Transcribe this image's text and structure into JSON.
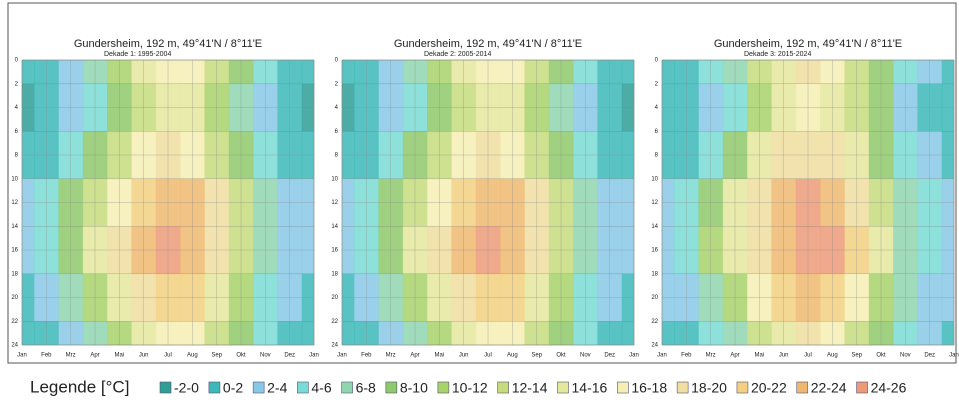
{
  "chart_data": [
    {
      "type": "heatmap",
      "title": "Gundersheim,  192 m, 49°41'N / 8°11'E",
      "subtitle": "Dekade 1: 1995-2004",
      "categories": [
        "Jan",
        "Feb",
        "Mrz",
        "Apr",
        "Mai",
        "Jun",
        "Jul",
        "Aug",
        "Sep",
        "Okt",
        "Nov",
        "Dez",
        "Jan"
      ],
      "y": [
        0,
        4,
        8,
        12,
        16,
        20,
        24
      ],
      "values": [
        [
          0,
          1,
          3,
          6,
          11,
          14,
          17,
          16,
          12,
          8,
          4,
          1,
          0
        ],
        [
          -1,
          0,
          2,
          5,
          9,
          13,
          15,
          15,
          11,
          7,
          3,
          0,
          -1
        ],
        [
          0,
          1,
          4,
          8,
          13,
          17,
          18,
          17,
          13,
          8,
          4,
          1,
          0
        ],
        [
          2,
          4,
          8,
          13,
          17,
          21,
          23,
          22,
          18,
          12,
          6,
          3,
          2
        ],
        [
          2,
          4,
          9,
          14,
          18,
          22,
          24.5,
          23.5,
          19,
          13,
          6,
          3,
          2
        ],
        [
          1,
          2,
          6,
          10,
          15,
          19,
          21,
          20,
          15,
          10,
          5,
          2,
          1
        ],
        [
          0,
          1,
          3,
          6,
          11,
          14,
          17,
          16,
          12,
          8,
          4,
          1,
          0
        ]
      ],
      "ylim": [
        0,
        24
      ],
      "yticks": [
        0,
        2,
        4,
        6,
        8,
        10,
        12,
        14,
        16,
        18,
        20,
        22,
        24
      ],
      "grid": true
    },
    {
      "type": "heatmap",
      "title": "Gundersheim,  192 m, 49°41'N / 8°11'E",
      "subtitle": "Dekade 2: 2005-2014",
      "categories": [
        "Jan",
        "Feb",
        "Mrz",
        "Apr",
        "Mai",
        "Jun",
        "Jul",
        "Aug",
        "Sep",
        "Okt",
        "Nov",
        "Dez",
        "Jan"
      ],
      "y": [
        0,
        4,
        8,
        12,
        16,
        20,
        24
      ],
      "values": [
        [
          0.5,
          1,
          3.5,
          7,
          11,
          15,
          17,
          16.5,
          12.5,
          8.5,
          4.5,
          1.5,
          0.5
        ],
        [
          -0.5,
          0,
          2.5,
          5.5,
          9.5,
          13.5,
          15.5,
          15,
          11.5,
          7.5,
          3.5,
          0.5,
          -0.5
        ],
        [
          0.5,
          1,
          4.5,
          8.5,
          13.5,
          17,
          18.5,
          17.5,
          13.5,
          8.5,
          4.5,
          1.5,
          0.5
        ],
        [
          2.5,
          4,
          9,
          13.5,
          17.5,
          21.5,
          23.5,
          22.5,
          18.5,
          12.5,
          6.5,
          3.5,
          2.5
        ],
        [
          2.5,
          4,
          9.5,
          14.5,
          18.5,
          22,
          24.5,
          23.5,
          19.5,
          13.5,
          6.5,
          3.5,
          2.5
        ],
        [
          1.5,
          2,
          6.5,
          10.5,
          15.5,
          19.5,
          21,
          20.5,
          15.5,
          10.5,
          5.5,
          2.5,
          1.5
        ],
        [
          0.5,
          1,
          3.5,
          7,
          11,
          15,
          17,
          16.5,
          12.5,
          8.5,
          4.5,
          1.5,
          0.5
        ]
      ],
      "ylim": [
        0,
        24
      ],
      "yticks": [
        0,
        2,
        4,
        6,
        8,
        10,
        12,
        14,
        16,
        18,
        20,
        22,
        24
      ],
      "grid": true
    },
    {
      "type": "heatmap",
      "title": "Gundersheim,  192 m, 49°41'N / 8°11'E",
      "subtitle": "Dekade 3: 2015-2024",
      "categories": [
        "Jan",
        "Feb",
        "Mrz",
        "Apr",
        "Mai",
        "Jun",
        "Jul",
        "Aug",
        "Sep",
        "Okt",
        "Nov",
        "Dez",
        "Jan"
      ],
      "y": [
        0,
        4,
        8,
        12,
        16,
        20,
        24
      ],
      "values": [
        [
          1,
          1.5,
          4,
          7,
          12,
          15,
          18,
          17,
          13,
          9,
          4.5,
          2,
          1
        ],
        [
          0,
          0.5,
          3,
          5.5,
          10,
          14,
          16,
          15.5,
          12,
          8,
          3.5,
          1,
          0
        ],
        [
          1,
          1.5,
          5,
          9,
          14,
          18,
          19,
          18,
          14,
          9,
          4.5,
          2,
          1
        ],
        [
          3,
          4.5,
          9.5,
          14,
          18,
          22,
          24,
          23,
          19,
          13,
          7,
          4,
          3
        ],
        [
          3,
          5,
          10,
          15,
          19,
          23,
          25,
          24.5,
          20,
          14,
          7,
          4,
          3
        ],
        [
          2,
          2.5,
          7,
          11,
          16,
          20,
          22,
          21,
          16,
          11,
          6,
          3,
          2
        ],
        [
          1,
          1.5,
          4,
          7,
          12,
          15,
          18,
          17,
          13,
          9,
          4.5,
          2,
          1
        ]
      ],
      "ylim": [
        0,
        24
      ],
      "yticks": [
        0,
        2,
        4,
        6,
        8,
        10,
        12,
        14,
        16,
        18,
        20,
        22,
        24
      ],
      "grid": true
    }
  ],
  "legend": {
    "title": "Legende [°C]",
    "labels": [
      "-2-0",
      "0-2",
      "2-4",
      "4-6",
      "6-8",
      "8-10",
      "10-12",
      "12-14",
      "14-16",
      "16-18",
      "18-20",
      "20-22",
      "22-24",
      "24-26"
    ],
    "levels": [
      -2,
      0,
      2,
      4,
      6,
      8,
      10,
      12,
      14,
      16,
      18,
      20,
      22,
      24,
      26
    ],
    "colors": [
      "#2e9e96",
      "#3cb8b8",
      "#88c8e6",
      "#79dcd4",
      "#8fd6b0",
      "#8ec96a",
      "#a8d26a",
      "#c6dc7c",
      "#e4e89c",
      "#f4eeb4",
      "#f0dea0",
      "#f2d080",
      "#eeb870",
      "#ec9a78"
    ]
  }
}
